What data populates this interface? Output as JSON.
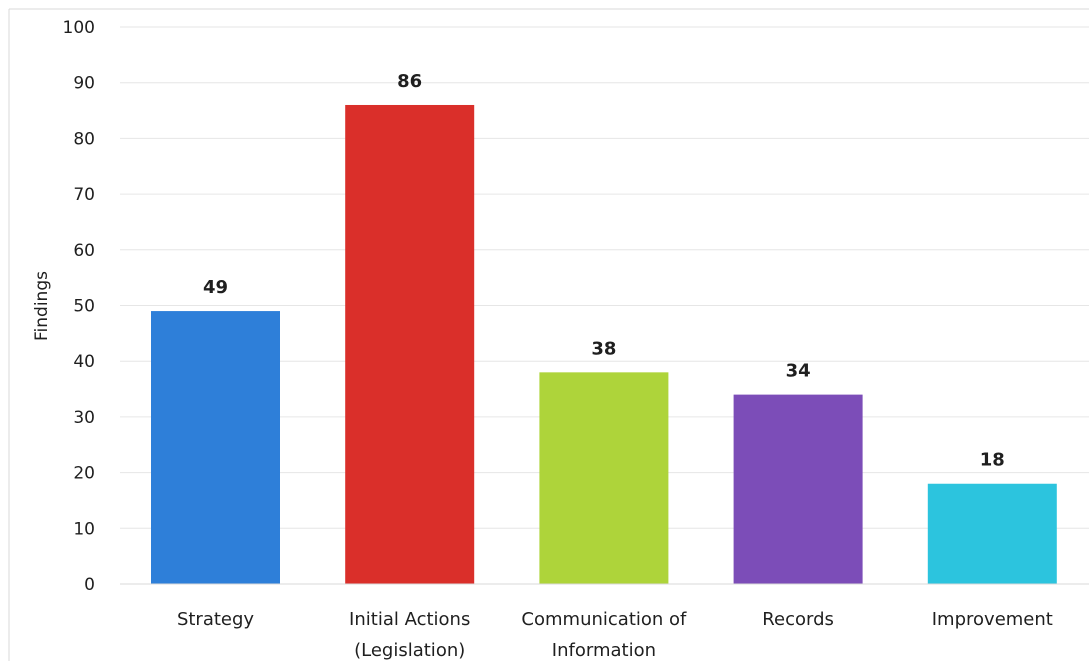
{
  "chart_data": {
    "type": "bar",
    "categories": [
      [
        "Strategy"
      ],
      [
        "Initial Actions",
        "(Legislation)"
      ],
      [
        "Communication of",
        "Information"
      ],
      [
        "Records"
      ],
      [
        "Improvement"
      ]
    ],
    "values": [
      49,
      86,
      38,
      34,
      18
    ],
    "colors": [
      "#2E7FD9",
      "#DA2F2A",
      "#AED43A",
      "#7C4DB8",
      "#2CC4DE"
    ],
    "title": "",
    "xlabel": "",
    "ylabel": "Findings",
    "ylim": [
      0,
      100
    ],
    "yticks": [
      0,
      10,
      20,
      30,
      40,
      50,
      60,
      70,
      80,
      90,
      100
    ],
    "grid": true,
    "legend": "none",
    "data_labels": true
  }
}
